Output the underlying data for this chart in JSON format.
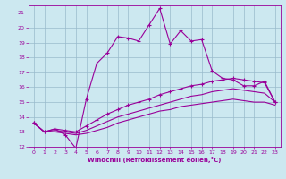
{
  "xlabel": "Windchill (Refroidissement éolien,°C)",
  "xlim": [
    -0.5,
    23.5
  ],
  "ylim": [
    12,
    21.5
  ],
  "yticks": [
    12,
    13,
    14,
    15,
    16,
    17,
    18,
    19,
    20,
    21
  ],
  "xticks": [
    0,
    1,
    2,
    3,
    4,
    5,
    6,
    7,
    8,
    9,
    10,
    11,
    12,
    13,
    14,
    15,
    16,
    17,
    18,
    19,
    20,
    21,
    22,
    23
  ],
  "bg_color": "#cce8f0",
  "line_color": "#990099",
  "grid_color": "#99bbcc",
  "line1_x": [
    0,
    1,
    2,
    3,
    4,
    5,
    6,
    7,
    8,
    9,
    10,
    11,
    12,
    13,
    14,
    15,
    16,
    17,
    18,
    19,
    20,
    21,
    22,
    23
  ],
  "line1_y": [
    13.6,
    13.0,
    13.2,
    12.8,
    11.9,
    15.2,
    17.6,
    18.3,
    19.4,
    19.3,
    19.1,
    20.2,
    21.3,
    18.9,
    19.8,
    19.1,
    19.2,
    17.1,
    16.6,
    16.5,
    16.1,
    16.1,
    16.4,
    15.0
  ],
  "line2_x": [
    0,
    1,
    2,
    3,
    4,
    5,
    6,
    7,
    8,
    9,
    10,
    11,
    12,
    13,
    14,
    15,
    16,
    17,
    18,
    19,
    20,
    21,
    22,
    23
  ],
  "line2_y": [
    13.6,
    13.0,
    13.2,
    13.1,
    13.0,
    13.4,
    13.8,
    14.2,
    14.5,
    14.8,
    15.0,
    15.2,
    15.5,
    15.7,
    15.9,
    16.1,
    16.2,
    16.4,
    16.5,
    16.6,
    16.5,
    16.4,
    16.3,
    15.0
  ],
  "line3_x": [
    0,
    1,
    2,
    3,
    4,
    5,
    6,
    7,
    8,
    9,
    10,
    11,
    12,
    13,
    14,
    15,
    16,
    17,
    18,
    19,
    20,
    21,
    22,
    23
  ],
  "line3_y": [
    13.6,
    13.0,
    13.1,
    13.0,
    12.9,
    13.1,
    13.4,
    13.7,
    14.0,
    14.2,
    14.4,
    14.6,
    14.8,
    15.0,
    15.2,
    15.4,
    15.5,
    15.7,
    15.8,
    15.9,
    15.8,
    15.7,
    15.6,
    15.0
  ],
  "line4_x": [
    0,
    1,
    2,
    3,
    4,
    5,
    6,
    7,
    8,
    9,
    10,
    11,
    12,
    13,
    14,
    15,
    16,
    17,
    18,
    19,
    20,
    21,
    22,
    23
  ],
  "line4_y": [
    13.6,
    13.0,
    13.0,
    12.9,
    12.8,
    12.9,
    13.1,
    13.3,
    13.6,
    13.8,
    14.0,
    14.2,
    14.4,
    14.5,
    14.7,
    14.8,
    14.9,
    15.0,
    15.1,
    15.2,
    15.1,
    15.0,
    15.0,
    14.8
  ]
}
